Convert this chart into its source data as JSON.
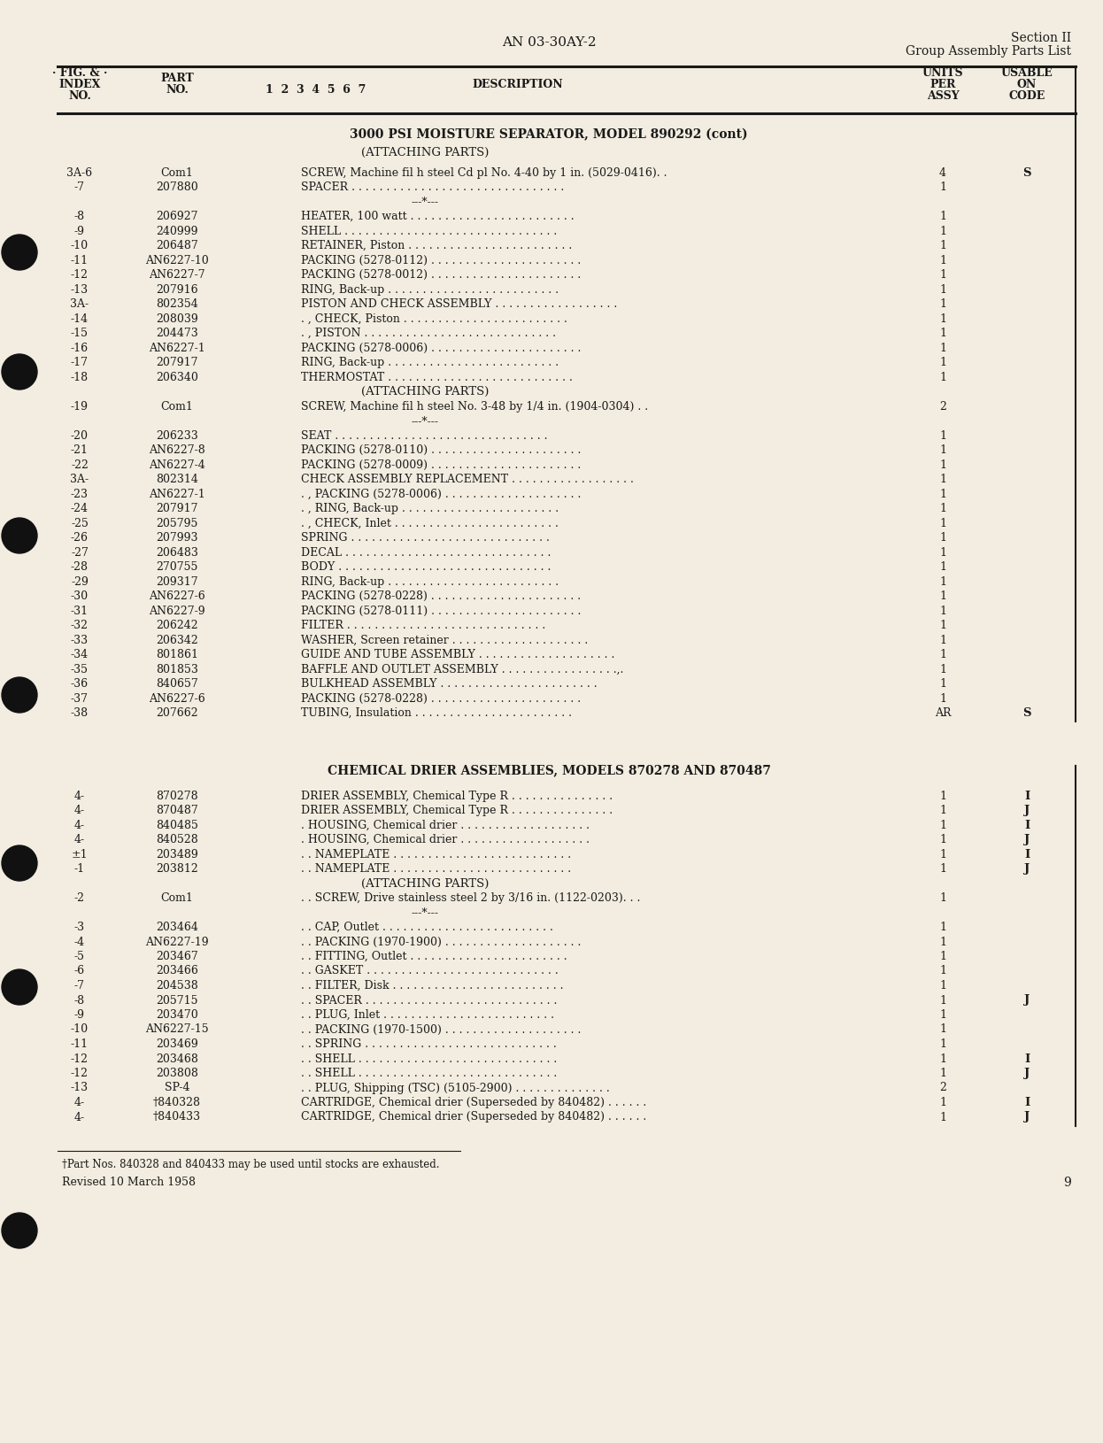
{
  "page_title_center": "AN 03-30AY-2",
  "section_right_1": "Section II",
  "section_right_2": "Group Assembly Parts List",
  "header_fig": [
    "· FIG. & ·",
    "INDEX",
    "NO."
  ],
  "header_part": [
    "PART",
    "NO."
  ],
  "header_123": "1  2  3  4  5  6  7",
  "header_desc": "DESCRIPTION",
  "header_units": [
    "UNITS",
    "PER",
    "ASSY"
  ],
  "header_usable": [
    "USABLE",
    "ON",
    "CODE"
  ],
  "section1_title": "3000 PSI MOISTURE SEPARATOR, MODEL 890292 (cont)",
  "section1_sub": "(ATTACHING PARTS)",
  "section2_title": "CHEMICAL DRIER ASSEMBLIES, MODELS 870278 AND 870487",
  "rows_section1": [
    [
      "3A-6",
      "Com1",
      "SCREW, Machine fil h steel Cd pl No. 4-40 by 1 in. (5029-0416). .",
      "4",
      "S"
    ],
    [
      "-7",
      "207880",
      "SPACER . . . . . . . . . . . . . . . . . . . . . . . . . . . . . . .",
      "1",
      ""
    ],
    [
      "",
      "",
      "---*---",
      "",
      ""
    ],
    [
      "-8",
      "206927",
      "HEATER, 100 watt . . . . . . . . . . . . . . . . . . . . . . . .",
      "1",
      ""
    ],
    [
      "-9",
      "240999",
      "SHELL . . . . . . . . . . . . . . . . . . . . . . . . . . . . . . .",
      "1",
      ""
    ],
    [
      "-10",
      "206487",
      "RETAINER, Piston . . . . . . . . . . . . . . . . . . . . . . . .",
      "1",
      ""
    ],
    [
      "-11",
      "AN6227-10",
      "PACKING (5278-0112) . . . . . . . . . . . . . . . . . . . . . .",
      "1",
      ""
    ],
    [
      "-12",
      "AN6227-7",
      "PACKING (5278-0012) . . . . . . . . . . . . . . . . . . . . . .",
      "1",
      ""
    ],
    [
      "-13",
      "207916",
      "RING, Back-up . . . . . . . . . . . . . . . . . . . . . . . . .",
      "1",
      ""
    ],
    [
      "3A-",
      "802354",
      "PISTON AND CHECK ASSEMBLY . . . . . . . . . . . . . . . . . .",
      "1",
      ""
    ],
    [
      "-14",
      "208039",
      ". , CHECK, Piston . . . . . . . . . . . . . . . . . . . . . . . .",
      "1",
      ""
    ],
    [
      "-15",
      "204473",
      ". , PISTON . . . . . . . . . . . . . . . . . . . . . . . . . . . .",
      "1",
      ""
    ],
    [
      "-16",
      "AN6227-1",
      "PACKING (5278-0006) . . . . . . . . . . . . . . . . . . . . . .",
      "1",
      ""
    ],
    [
      "-17",
      "207917",
      "RING, Back-up . . . . . . . . . . . . . . . . . . . . . . . . .",
      "1",
      ""
    ],
    [
      "-18",
      "206340",
      "THERMOSTAT . . . . . . . . . . . . . . . . . . . . . . . . . . .",
      "1",
      ""
    ],
    [
      "",
      "",
      "(ATTACHING PARTS)",
      "",
      ""
    ],
    [
      "-19",
      "Com1",
      "SCREW, Machine fil h steel No. 3-48 by 1/4 in. (1904-0304) . .",
      "2",
      ""
    ],
    [
      "",
      "",
      "---*---",
      "",
      ""
    ],
    [
      "-20",
      "206233",
      "SEAT . . . . . . . . . . . . . . . . . . . . . . . . . . . . . . .",
      "1",
      ""
    ],
    [
      "-21",
      "AN6227-8",
      "PACKING (5278-0110) . . . . . . . . . . . . . . . . . . . . . .",
      "1",
      ""
    ],
    [
      "-22",
      "AN6227-4",
      "PACKING (5278-0009) . . . . . . . . . . . . . . . . . . . . . .",
      "1",
      ""
    ],
    [
      "3A-",
      "802314",
      "CHECK ASSEMBLY REPLACEMENT . . . . . . . . . . . . . . . . . .",
      "1",
      ""
    ],
    [
      "-23",
      "AN6227-1",
      ". , PACKING (5278-0006) . . . . . . . . . . . . . . . . . . . .",
      "1",
      ""
    ],
    [
      "-24",
      "207917",
      ". , RING, Back-up . . . . . . . . . . . . . . . . . . . . . . .",
      "1",
      ""
    ],
    [
      "-25",
      "205795",
      ". , CHECK, Inlet . . . . . . . . . . . . . . . . . . . . . . . .",
      "1",
      ""
    ],
    [
      "-26",
      "207993",
      "SPRING . . . . . . . . . . . . . . . . . . . . . . . . . . . . .",
      "1",
      ""
    ],
    [
      "-27",
      "206483",
      "DECAL . . . . . . . . . . . . . . . . . . . . . . . . . . . . . .",
      "1",
      ""
    ],
    [
      "-28",
      "270755",
      "BODY . . . . . . . . . . . . . . . . . . . . . . . . . . . . . . .",
      "1",
      ""
    ],
    [
      "-29",
      "209317",
      "RING, Back-up . . . . . . . . . . . . . . . . . . . . . . . . .",
      "1",
      ""
    ],
    [
      "-30",
      "AN6227-6",
      "PACKING (5278-0228) . . . . . . . . . . . . . . . . . . . . . .",
      "1",
      ""
    ],
    [
      "-31",
      "AN6227-9",
      "PACKING (5278-0111) . . . . . . . . . . . . . . . . . . . . . .",
      "1",
      ""
    ],
    [
      "-32",
      "206242",
      "FILTER . . . . . . . . . . . . . . . . . . . . . . . . . . . . .",
      "1",
      ""
    ],
    [
      "-33",
      "206342",
      "WASHER, Screen retainer . . . . . . . . . . . . . . . . . . . .",
      "1",
      ""
    ],
    [
      "-34",
      "801861",
      "GUIDE AND TUBE ASSEMBLY . . . . . . . . . . . . . . . . . . . .",
      "1",
      ""
    ],
    [
      "-35",
      "801853",
      "BAFFLE AND OUTLET ASSEMBLY . . . . . . . . . . . . . . . . .,.",
      "1",
      ""
    ],
    [
      "-36",
      "840657",
      "BULKHEAD ASSEMBLY . . . . . . . . . . . . . . . . . . . . . . .",
      "1",
      ""
    ],
    [
      "-37",
      "AN6227-6",
      "PACKING (5278-0228) . . . . . . . . . . . . . . . . . . . . . .",
      "1",
      ""
    ],
    [
      "-38",
      "207662",
      "TUBING, Insulation . . . . . . . . . . . . . . . . . . . . . . .",
      "AR",
      "S"
    ]
  ],
  "rows_section2": [
    [
      "4-",
      "870278",
      "DRIER ASSEMBLY, Chemical Type R . . . . . . . . . . . . . . .",
      "1",
      "I"
    ],
    [
      "4-",
      "870487",
      "DRIER ASSEMBLY, Chemical Type R . . . . . . . . . . . . . . .",
      "1",
      "J"
    ],
    [
      "4-",
      "840485",
      ". HOUSING, Chemical drier . . . . . . . . . . . . . . . . . . .",
      "1",
      "I"
    ],
    [
      "4-",
      "840528",
      ". HOUSING, Chemical drier . . . . . . . . . . . . . . . . . . .",
      "1",
      "J"
    ],
    [
      "±1",
      "203489",
      ". . NAMEPLATE . . . . . . . . . . . . . . . . . . . . . . . . . .",
      "1",
      "I"
    ],
    [
      "-1",
      "203812",
      ". . NAMEPLATE . . . . . . . . . . . . . . . . . . . . . . . . . .",
      "1",
      "J"
    ],
    [
      "",
      "",
      "(ATTACHING PARTS)",
      "",
      ""
    ],
    [
      "-2",
      "Com1",
      ". . SCREW, Drive stainless steel 2 by 3/16 in. (1122-0203). . .",
      "1",
      ""
    ],
    [
      "",
      "",
      "---*---",
      "",
      ""
    ],
    [
      "-3",
      "203464",
      ". . CAP, Outlet . . . . . . . . . . . . . . . . . . . . . . . . .",
      "1",
      ""
    ],
    [
      "-4",
      "AN6227-19",
      ". . PACKING (1970-1900) . . . . . . . . . . . . . . . . . . . .",
      "1",
      ""
    ],
    [
      "-5",
      "203467",
      ". . FITTING, Outlet . . . . . . . . . . . . . . . . . . . . . . .",
      "1",
      ""
    ],
    [
      "-6",
      "203466",
      ". . GASKET . . . . . . . . . . . . . . . . . . . . . . . . . . . .",
      "1",
      ""
    ],
    [
      "-7",
      "204538",
      ". . FILTER, Disk . . . . . . . . . . . . . . . . . . . . . . . . .",
      "1",
      ""
    ],
    [
      "-8",
      "205715",
      ". . SPACER . . . . . . . . . . . . . . . . . . . . . . . . . . . .",
      "1",
      "J"
    ],
    [
      "-9",
      "203470",
      ". . PLUG, Inlet . . . . . . . . . . . . . . . . . . . . . . . . .",
      "1",
      ""
    ],
    [
      "-10",
      "AN6227-15",
      ". . PACKING (1970-1500) . . . . . . . . . . . . . . . . . . . .",
      "1",
      ""
    ],
    [
      "-11",
      "203469",
      ". . SPRING . . . . . . . . . . . . . . . . . . . . . . . . . . . .",
      "1",
      ""
    ],
    [
      "-12",
      "203468",
      ". . SHELL . . . . . . . . . . . . . . . . . . . . . . . . . . . . .",
      "1",
      "I"
    ],
    [
      "-12",
      "203808",
      ". . SHELL . . . . . . . . . . . . . . . . . . . . . . . . . . . . .",
      "1",
      "J"
    ],
    [
      "-13",
      "SP-4",
      ". . PLUG, Shipping (TSC) (5105-2900) . . . . . . . . . . . . . .",
      "2",
      ""
    ],
    [
      "4-",
      "†840328",
      "CARTRIDGE, Chemical drier (Superseded by 840482) . . . . . .",
      "1",
      "I"
    ],
    [
      "4-",
      "†840433",
      "CARTRIDGE, Chemical drier (Superseded by 840482) . . . . . .",
      "1",
      "J"
    ]
  ],
  "footnote": "†Part Nos. 840328 and 840433 may be used until stocks are exhausted.",
  "revised": "Revised 10 March 1958",
  "page_num": "9",
  "bg_color": "#f2ede0",
  "text_color": "#1a1a1a",
  "line_color": "#1a1a1a"
}
